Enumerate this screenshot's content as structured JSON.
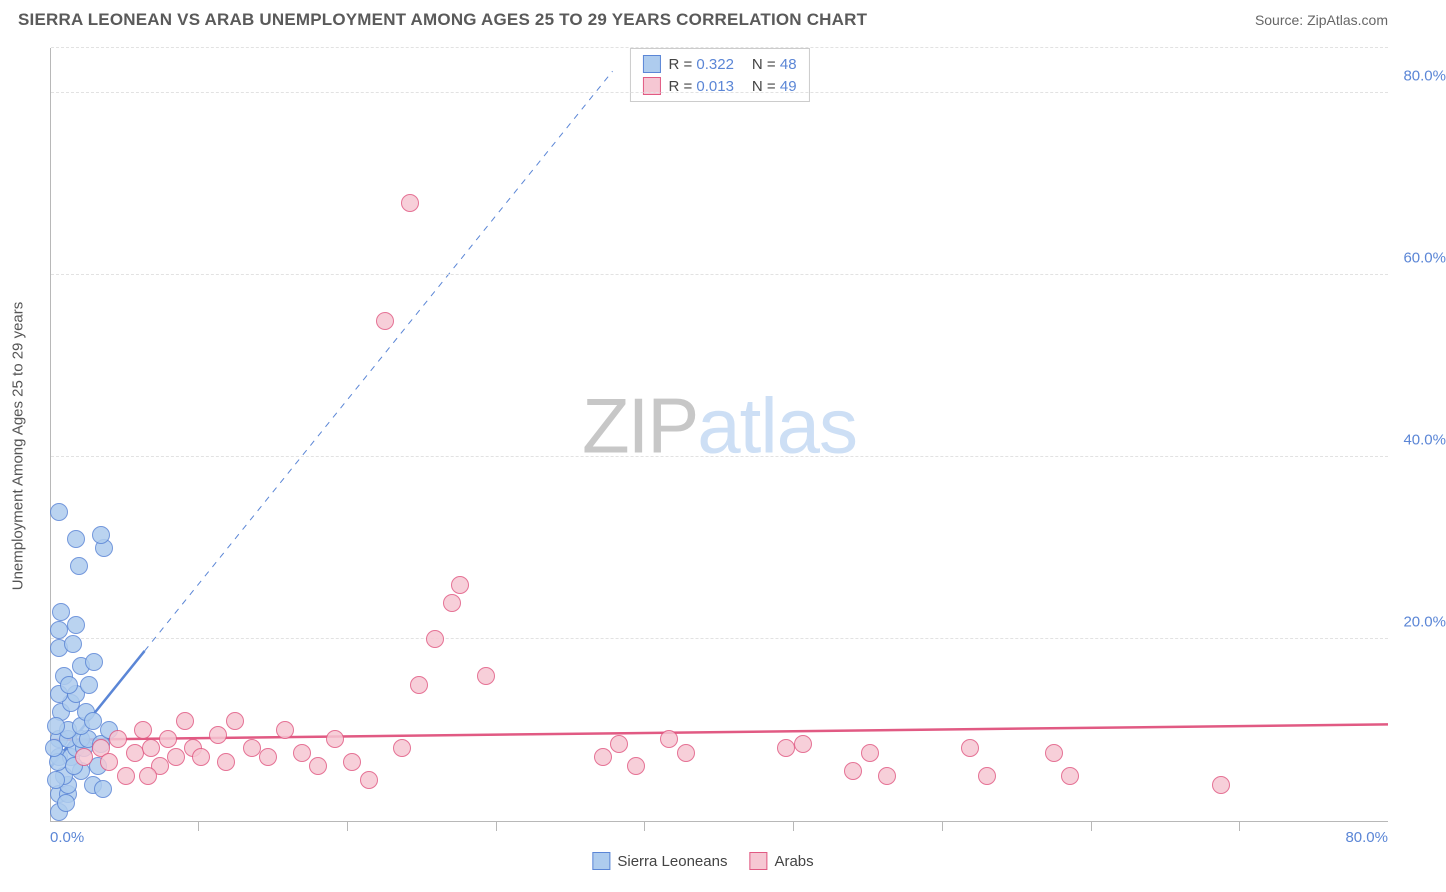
{
  "header": {
    "title": "SIERRA LEONEAN VS ARAB UNEMPLOYMENT AMONG AGES 25 TO 29 YEARS CORRELATION CHART",
    "source_prefix": "Source: ",
    "source_name": "ZipAtlas.com"
  },
  "watermark": {
    "part1": "ZIP",
    "part2": "atlas"
  },
  "chart": {
    "type": "scatter",
    "ylabel": "Unemployment Among Ages 25 to 29 years",
    "xlim": [
      0,
      80
    ],
    "ylim": [
      0,
      85
    ],
    "x_ticks_major": [
      0,
      80
    ],
    "x_ticks_minor": [
      8.8,
      17.7,
      26.6,
      35.5,
      44.4,
      53.3,
      62.2,
      71.1
    ],
    "y_ticks": [
      20,
      40,
      60,
      80
    ],
    "background_color": "#ffffff",
    "grid_color": "#e2e2e2",
    "axis_color": "#b8b8b8",
    "tick_label_color": "#5b86d6",
    "tick_fontsize": 15,
    "ylabel_color": "#555555",
    "ylabel_fontsize": 15,
    "point_radius": 9,
    "point_border_width": 1,
    "point_fill_opacity": 0.35,
    "series": [
      {
        "name": "Sierra Leoneans",
        "fill": "#aeccee",
        "stroke": "#5b86d6",
        "R": "0.322",
        "N": "48",
        "trend_solid": {
          "x1": 0,
          "y1": 7,
          "x2": 7,
          "y2": 22,
          "width": 2.5
        },
        "trend_dash": {
          "x1": 7,
          "y1": 22,
          "x2": 42,
          "y2": 97,
          "width": 1,
          "dash": "6 6"
        },
        "points": [
          [
            0.5,
            1
          ],
          [
            0.5,
            3
          ],
          [
            1,
            3
          ],
          [
            1,
            4
          ],
          [
            0.8,
            5
          ],
          [
            0.5,
            7
          ],
          [
            1.2,
            7
          ],
          [
            1.5,
            8
          ],
          [
            2,
            8
          ],
          [
            0.5,
            9
          ],
          [
            1,
            9
          ],
          [
            1.8,
            9
          ],
          [
            2.2,
            9
          ],
          [
            3,
            8.5
          ],
          [
            1,
            10
          ],
          [
            1.8,
            10.5
          ],
          [
            0.6,
            12
          ],
          [
            1.2,
            13
          ],
          [
            0.5,
            14
          ],
          [
            1.5,
            14
          ],
          [
            2.3,
            15
          ],
          [
            0.8,
            16
          ],
          [
            1.8,
            17
          ],
          [
            2.6,
            17.5
          ],
          [
            0.5,
            19
          ],
          [
            1.3,
            19.5
          ],
          [
            0.5,
            21
          ],
          [
            1.5,
            21.5
          ],
          [
            0.6,
            23
          ],
          [
            1.7,
            28
          ],
          [
            3.2,
            30
          ],
          [
            1.5,
            31
          ],
          [
            3,
            31.5
          ],
          [
            0.5,
            34
          ],
          [
            0.3,
            4.5
          ],
          [
            2.5,
            4
          ],
          [
            3.1,
            3.5
          ],
          [
            2.8,
            6
          ],
          [
            1.8,
            5.5
          ],
          [
            2.1,
            12
          ],
          [
            0.4,
            6.5
          ],
          [
            3.5,
            10
          ],
          [
            2.5,
            11
          ],
          [
            0.2,
            8
          ],
          [
            0.9,
            2
          ],
          [
            1.4,
            6
          ],
          [
            0.3,
            10.5
          ],
          [
            1.1,
            15
          ]
        ]
      },
      {
        "name": "Arabs",
        "fill": "#f6c7d3",
        "stroke": "#e15a83",
        "R": "0.013",
        "N": "49",
        "trend_solid": {
          "x1": 0,
          "y1": 10.5,
          "x2": 100,
          "y2": 12.5,
          "width": 2.5
        },
        "points": [
          [
            2,
            7
          ],
          [
            3,
            8
          ],
          [
            3.5,
            6.5
          ],
          [
            4,
            9
          ],
          [
            5,
            7.5
          ],
          [
            5.5,
            10
          ],
          [
            6,
            8
          ],
          [
            6.5,
            6
          ],
          [
            7,
            9
          ],
          [
            7.5,
            7
          ],
          [
            8,
            11
          ],
          [
            8.5,
            8
          ],
          [
            9,
            7
          ],
          [
            10,
            9.5
          ],
          [
            10.5,
            6.5
          ],
          [
            11,
            11
          ],
          [
            12,
            8
          ],
          [
            13,
            7
          ],
          [
            14,
            10
          ],
          [
            15,
            7.5
          ],
          [
            16,
            6
          ],
          [
            17,
            9
          ],
          [
            18,
            6.5
          ],
          [
            19,
            4.5
          ],
          [
            21,
            8
          ],
          [
            22,
            15
          ],
          [
            23,
            20
          ],
          [
            24,
            24
          ],
          [
            24.5,
            26
          ],
          [
            26,
            16
          ],
          [
            20,
            55
          ],
          [
            21.5,
            68
          ],
          [
            33,
            7
          ],
          [
            34,
            8.5
          ],
          [
            35,
            6
          ],
          [
            37,
            9
          ],
          [
            38,
            7.5
          ],
          [
            44,
            8
          ],
          [
            45,
            8.5
          ],
          [
            48,
            5.5
          ],
          [
            49,
            7.5
          ],
          [
            50,
            5
          ],
          [
            55,
            8
          ],
          [
            56,
            5
          ],
          [
            60,
            7.5
          ],
          [
            61,
            5
          ],
          [
            70,
            4
          ],
          [
            4.5,
            5
          ],
          [
            5.8,
            5
          ]
        ]
      }
    ]
  },
  "legend": {
    "items": [
      {
        "label": "Sierra Leoneans",
        "fill": "#aeccee",
        "stroke": "#5b86d6"
      },
      {
        "label": "Arabs",
        "fill": "#f6c7d3",
        "stroke": "#e15a83"
      }
    ]
  },
  "stats_labels": {
    "R_prefix": "R = ",
    "N_prefix": "N = "
  },
  "axis_format": {
    "x0": "0.0%",
    "x80": "80.0%",
    "y20": "20.0%",
    "y40": "40.0%",
    "y60": "60.0%",
    "y80": "80.0%"
  }
}
